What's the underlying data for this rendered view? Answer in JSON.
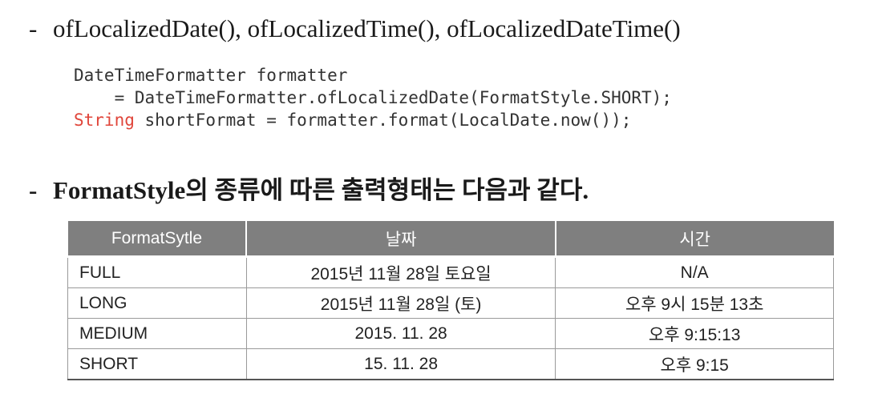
{
  "heading1": {
    "dash": "-",
    "text": "ofLocalizedDate(), ofLocalizedTime(), ofLocalizedDateTime()"
  },
  "code": {
    "line1": "DateTimeFormatter formatter",
    "line2": "    = DateTimeFormatter.ofLocalizedDate(FormatStyle.SHORT);",
    "line3_keyword": "String",
    "line3_rest": " shortFormat = formatter.format(LocalDate.now());",
    "keyword_color": "#e0453a"
  },
  "heading2": {
    "dash": "-",
    "text": "FormatStyle의 종류에 따른 출력형태는 다음과 같다."
  },
  "table": {
    "headers": [
      "FormatSytle",
      "날짜",
      "시간"
    ],
    "rows": [
      {
        "style": "FULL",
        "date": "2015년 11월 28일 토요일",
        "time": "N/A"
      },
      {
        "style": "LONG",
        "date": "2015년 11월 28일 (토)",
        "time": "오후 9시 15분 13초"
      },
      {
        "style": "MEDIUM",
        "date": "2015. 11. 28",
        "time": "오후 9:15:13"
      },
      {
        "style": "SHORT",
        "date": "15. 11. 28",
        "time": "오후 9:15"
      }
    ],
    "header_bg": "#7f7f7f"
  }
}
